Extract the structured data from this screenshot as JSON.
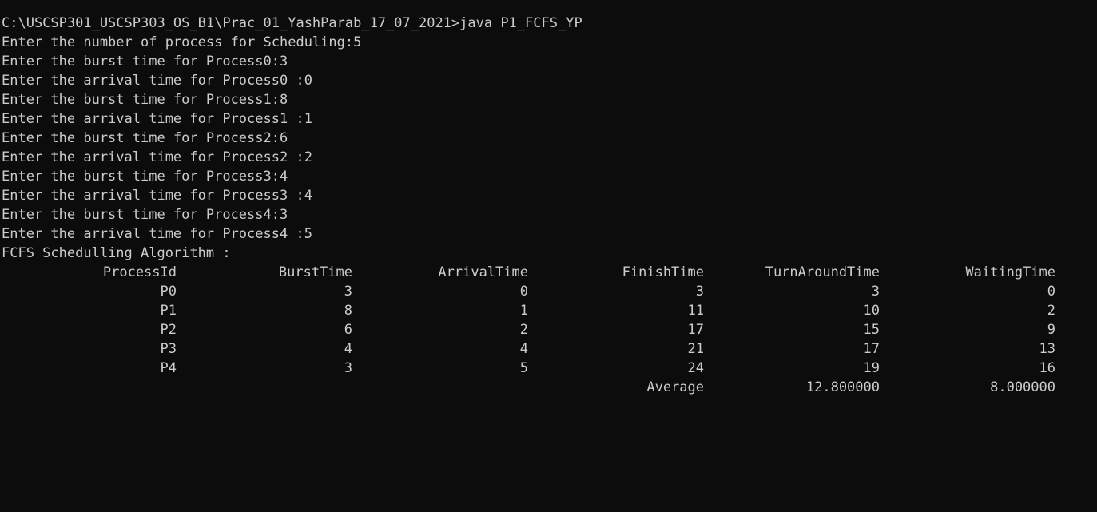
{
  "command_line": "C:\\USCSP301_USCSP303_OS_B1\\Prac_01_YashParab_17_07_2021>java P1_FCFS_YP",
  "prompts": [
    "Enter the number of process for Scheduling:5",
    "Enter the burst time for Process0:3",
    "Enter the arrival time for Process0 :0",
    "Enter the burst time for Process1:8",
    "Enter the arrival time for Process1 :1",
    "Enter the burst time for Process2:6",
    "Enter the arrival time for Process2 :2",
    "Enter the burst time for Process3:4",
    "Enter the arrival time for Process3 :4",
    "Enter the burst time for Process4:3",
    "Enter the arrival time for Process4 :5"
  ],
  "algorithm_title": "FCFS Schedulling Algorithm :",
  "table": {
    "headers": [
      "ProcessId",
      "BurstTime",
      "ArrivalTime",
      "FinishTime",
      "TurnAroundTime",
      "WaitingTime"
    ],
    "rows": [
      [
        "P0",
        "3",
        "0",
        "3",
        "3",
        "0"
      ],
      [
        "P1",
        "8",
        "1",
        "11",
        "10",
        "2"
      ],
      [
        "P2",
        "6",
        "2",
        "17",
        "15",
        "9"
      ],
      [
        "P3",
        "4",
        "4",
        "21",
        "17",
        "13"
      ],
      [
        "P4",
        "3",
        "5",
        "24",
        "19",
        "16"
      ]
    ],
    "average": {
      "label": "Average",
      "turnaround": "12.800000",
      "waiting": "8.000000"
    }
  }
}
